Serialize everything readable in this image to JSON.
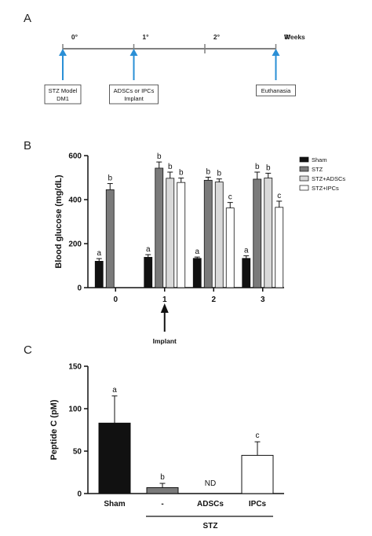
{
  "panel_labels": {
    "a": "A",
    "b": "B",
    "c": "C"
  },
  "timeline": {
    "ticks": [
      "0°",
      "1°",
      "2°",
      "3°"
    ],
    "unit": "Weeks",
    "events": [
      {
        "week": 0,
        "line1": "STZ Model",
        "line2": "DM1"
      },
      {
        "week": 1,
        "line1": "ADSCs or IPCs",
        "line2": "Implant"
      },
      {
        "week": 3,
        "line1": "Euthanasia",
        "line2": ""
      }
    ],
    "colors": {
      "axis": "#808080",
      "arrow": "#2a8fd6"
    }
  },
  "chart_data": [
    {
      "type": "bar",
      "panel": "B",
      "title": "",
      "xlabel": "",
      "ylabel": "Blood glucose (mg/dL)",
      "ylim": [
        0,
        600
      ],
      "yticks": [
        "0",
        "200",
        "400",
        "600"
      ],
      "categories": [
        "0",
        "1",
        "2",
        "3"
      ],
      "series": [
        {
          "name": "Sham",
          "color": "#111111",
          "values": [
            120,
            138,
            133,
            133
          ],
          "errors": [
            12,
            12,
            6,
            12
          ],
          "labels": [
            "a",
            "a",
            "a",
            "a"
          ]
        },
        {
          "name": "STZ",
          "color": "#7a7a7a",
          "values": [
            445,
            543,
            488,
            493
          ],
          "errors": [
            28,
            28,
            14,
            32
          ],
          "labels": [
            "b",
            "b",
            "b",
            "b"
          ]
        },
        {
          "name": "STZ+ADSCs",
          "color": "#d9d9d9",
          "values": [
            null,
            497,
            480,
            498
          ],
          "errors": [
            null,
            28,
            14,
            22
          ],
          "labels": [
            "",
            "b",
            "b",
            "b"
          ]
        },
        {
          "name": "STZ+IPCs",
          "color": "#ffffff",
          "values": [
            null,
            478,
            362,
            365
          ],
          "errors": [
            null,
            20,
            25,
            28
          ],
          "labels": [
            "",
            "b",
            "c",
            "c"
          ]
        }
      ],
      "annotation": "Implant",
      "legend_position": "top-right",
      "grid": false
    },
    {
      "type": "bar",
      "panel": "C",
      "title": "",
      "xlabel": "STZ",
      "ylabel": "Peptide C (pM)",
      "ylim": [
        0,
        150
      ],
      "yticks": [
        "0",
        "50",
        "100",
        "150"
      ],
      "categories": [
        "Sham",
        "-",
        "ADSCs",
        "IPCs"
      ],
      "values": [
        83,
        7,
        null,
        45
      ],
      "errors": [
        32,
        5,
        null,
        16
      ],
      "labels": [
        "a",
        "b",
        "ND",
        "c"
      ],
      "colors": [
        "#111111",
        "#7a7a7a",
        "#ffffff",
        "#ffffff"
      ],
      "grid": false
    }
  ]
}
